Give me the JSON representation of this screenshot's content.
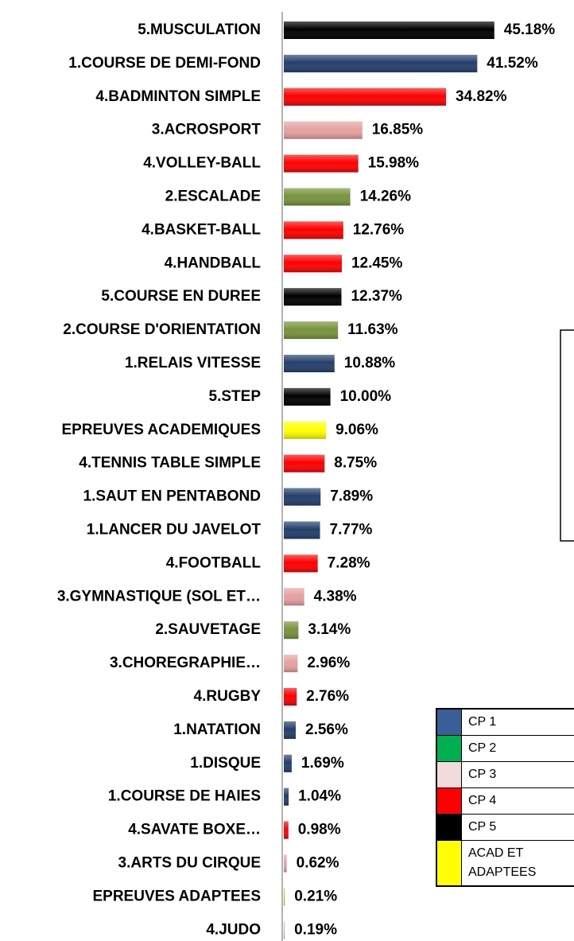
{
  "chart_data": {
    "type": "hbar",
    "categories": [
      "5.MUSCULATION",
      "1.COURSE DE DEMI-FOND",
      "4.BADMINTON SIMPLE",
      "3.ACROSPORT",
      "4.VOLLEY-BALL",
      "2.ESCALADE",
      "4.BASKET-BALL",
      "4.HANDBALL",
      "5.COURSE EN DUREE",
      "2.COURSE D'ORIENTATION",
      "1.RELAIS VITESSE",
      "5.STEP",
      "EPREUVES ACADEMIQUES",
      "4.TENNIS TABLE SIMPLE",
      "1.SAUT EN PENTABOND",
      "1.LANCER DU JAVELOT",
      "4.FOOTBALL",
      "3.GYMNASTIQUE (SOL ET…",
      "2.SAUVETAGE",
      "3.CHOREGRAPHIE…",
      "4.RUGBY",
      "1.NATATION",
      "1.DISQUE",
      "1.COURSE DE HAIES",
      "4.SAVATE BOXE…",
      "3.ARTS DU CIRQUE",
      "EPREUVES ADAPTEES",
      "4.JUDO"
    ],
    "values": [
      45.18,
      41.52,
      34.82,
      16.85,
      15.98,
      14.26,
      12.76,
      12.45,
      12.37,
      11.63,
      10.88,
      10.0,
      9.06,
      8.75,
      7.89,
      7.77,
      7.28,
      4.38,
      3.14,
      2.96,
      2.76,
      2.56,
      1.69,
      1.04,
      0.98,
      0.62,
      0.21,
      0.19
    ],
    "value_labels": [
      "45.18%",
      "41.52%",
      "34.82%",
      "16.85%",
      "15.98%",
      "14.26%",
      "12.76%",
      "12.45%",
      "12.37%",
      "11.63%",
      "10.88%",
      "10.00%",
      "9.06%",
      "8.75%",
      "7.89%",
      "7.77%",
      "7.28%",
      "4.38%",
      "3.14%",
      "2.96%",
      "2.76%",
      "2.56%",
      "1.69%",
      "1.04%",
      "0.98%",
      "0.62%",
      "0.21%",
      "0.19%"
    ],
    "colors": [
      "#000000",
      "#243f6b",
      "#ff0000",
      "#e6a1a1",
      "#ff0000",
      "#77933c",
      "#ff0000",
      "#ff0000",
      "#000000",
      "#77933c",
      "#243f6b",
      "#000000",
      "#ffff00",
      "#ff0000",
      "#243f6b",
      "#243f6b",
      "#ff0000",
      "#e6a1a1",
      "#77933c",
      "#e6a1a1",
      "#ff0000",
      "#243f6b",
      "#243f6b",
      "#243f6b",
      "#ff0000",
      "#e6a1a1",
      "#c8c800",
      "#e6a1a1"
    ],
    "xlim": [
      0,
      50
    ],
    "legend": [
      {
        "label": "CP 1",
        "color": "#3a5f96"
      },
      {
        "label": "CP 2",
        "color": "#00b050"
      },
      {
        "label": "CP 3",
        "color": "#f2dcdb"
      },
      {
        "label": "CP 4",
        "color": "#ff0000"
      },
      {
        "label": "CP 5",
        "color": "#000000"
      },
      {
        "label": "ACAD ET ADAPTEES",
        "color": "#ffff00"
      }
    ]
  }
}
